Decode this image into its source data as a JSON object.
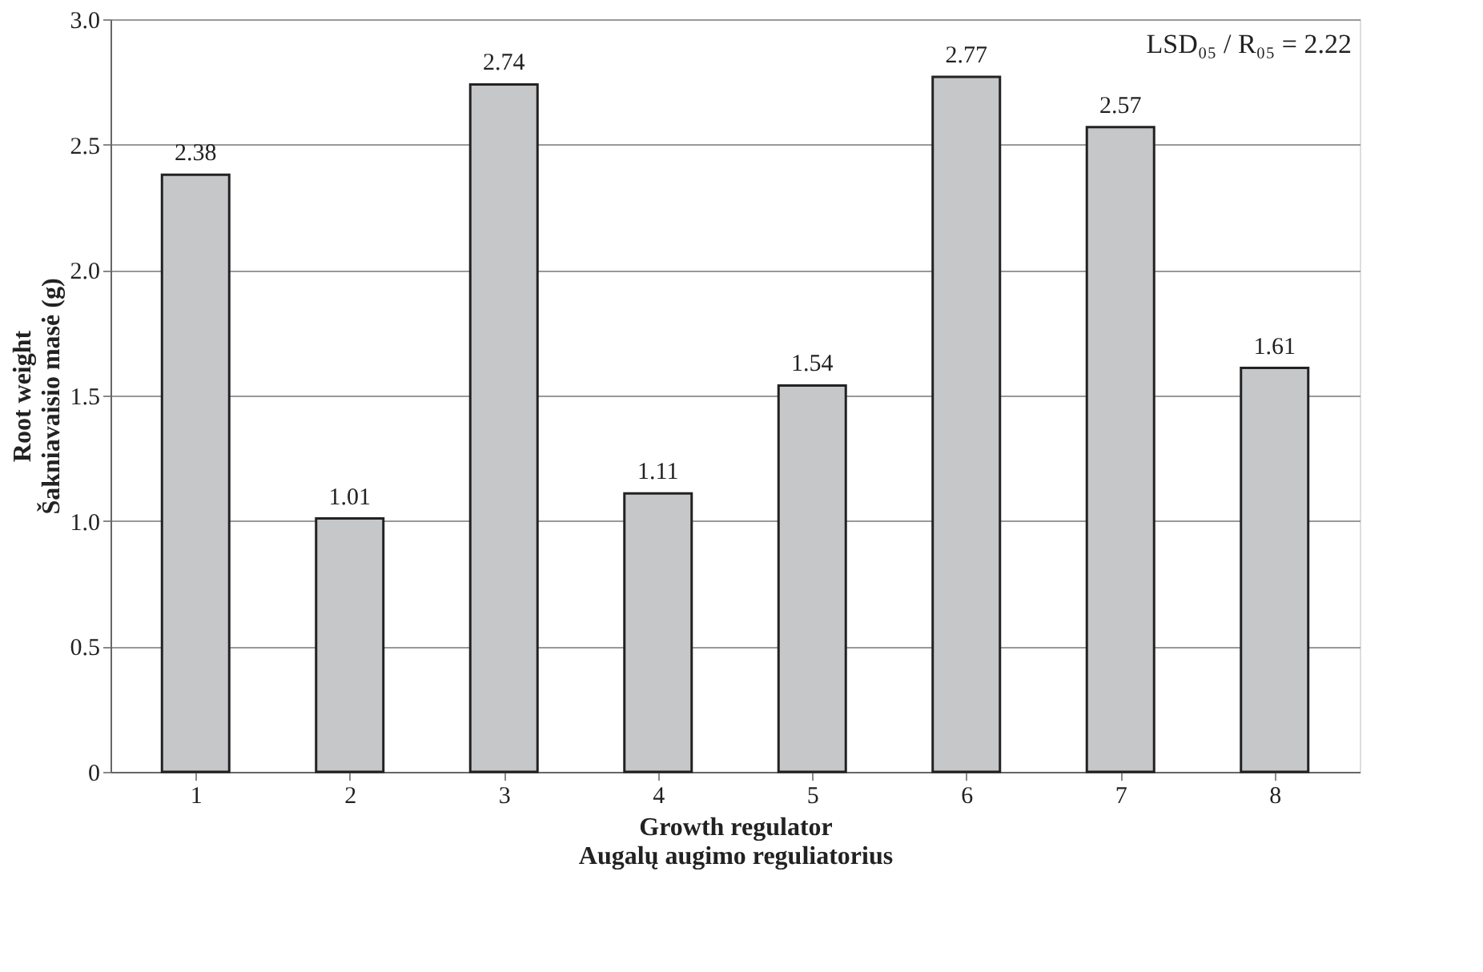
{
  "chart_data": {
    "type": "bar",
    "categories": [
      "1",
      "2",
      "3",
      "4",
      "5",
      "6",
      "7",
      "8"
    ],
    "values": [
      2.38,
      1.01,
      2.74,
      1.11,
      1.54,
      2.77,
      2.57,
      1.61
    ],
    "color": "#c6c7c9",
    "data_labels": true,
    "xlabel": "Growth regulator\nAugalų augimo reguliatorius",
    "ylabel": "Root weight\nŠakniavaisio masė (g)",
    "annotations": [
      "LSD₀₅ / R₀₅ = 2.22"
    ],
    "ylim": [
      0,
      3
    ],
    "yticks": [
      0,
      0.5,
      {
        "value": 1,
        "label": "1.0"
      },
      1.5,
      {
        "value": 2,
        "label": "2.0"
      },
      2.5,
      {
        "value": 3,
        "label": "3.0"
      }
    ],
    "grid": "y"
  }
}
